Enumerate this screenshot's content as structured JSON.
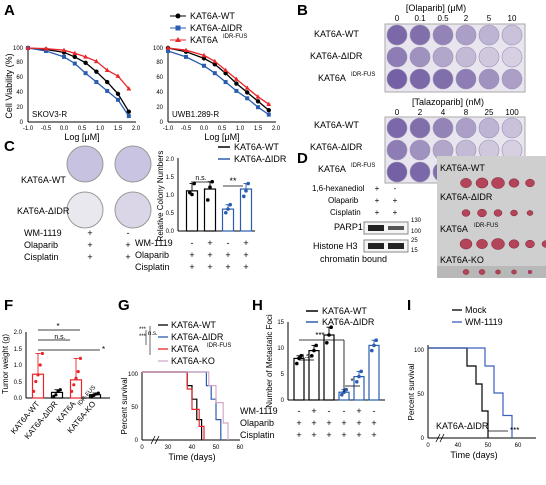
{
  "panels": {
    "A": "A",
    "B": "B",
    "C": "C",
    "D": "D",
    "E": "E",
    "F": "F",
    "G": "G",
    "H": "H",
    "I": "I"
  },
  "colors": {
    "wt": "#000000",
    "didr": "#2a5db0",
    "fus": "#e8262b",
    "ko": "#d4a9c7",
    "mock": "#000000",
    "wm": "#3b5fc0"
  },
  "panelA": {
    "legend": [
      "KAT6A-WT",
      "KAT6A-ΔIDR",
      "KAT6A",
      "IDR-FUS"
    ],
    "ylabel": "Cell Viability (%)",
    "xlabel": "Log [μM]",
    "yticks": [
      "0",
      "20",
      "40",
      "60",
      "80",
      "100"
    ],
    "xticks": [
      "-1.0",
      "-0.5",
      "0.0",
      "0.5",
      "1.0",
      "1.5",
      "2.0"
    ],
    "left_label": "SKOV3-R",
    "right_label": "UWB1.289-R"
  },
  "chart_data": [
    {
      "type": "scatter",
      "panel": "A-left",
      "title": "SKOV3-R",
      "xlabel": "Log [μM]",
      "ylabel": "Cell Viability (%)",
      "xlim": [
        -1.0,
        2.0
      ],
      "ylim": [
        0,
        100
      ],
      "series": [
        {
          "name": "KAT6A-WT",
          "x": [
            -1.0,
            -0.5,
            0.0,
            0.3,
            0.6,
            0.9,
            1.2,
            1.5,
            1.8
          ],
          "values": [
            100,
            98,
            94,
            88,
            80,
            68,
            54,
            38,
            14
          ]
        },
        {
          "name": "KAT6A-ΔIDR",
          "x": [
            -1.0,
            -0.5,
            0.0,
            0.3,
            0.6,
            0.9,
            1.2,
            1.5,
            1.8
          ],
          "values": [
            100,
            96,
            88,
            79,
            66,
            54,
            42,
            30,
            8
          ]
        },
        {
          "name": "KAT6A IDR-FUS",
          "x": [
            -1.0,
            -0.5,
            0.0,
            0.3,
            0.6,
            0.9,
            1.2,
            1.5,
            1.8
          ],
          "values": [
            100,
            99,
            97,
            93,
            88,
            82,
            70,
            62,
            45
          ]
        }
      ]
    },
    {
      "type": "scatter",
      "panel": "A-right",
      "title": "UWB1.289-R",
      "xlabel": "Log [μM]",
      "ylabel": "Cell Viability (%)",
      "xlim": [
        -1.0,
        2.0
      ],
      "ylim": [
        0,
        100
      ],
      "series": [
        {
          "name": "KAT6A-WT",
          "x": [
            -1.0,
            -0.5,
            0.0,
            0.3,
            0.6,
            0.9,
            1.2,
            1.5,
            1.8
          ],
          "values": [
            100,
            95,
            86,
            78,
            66,
            52,
            40,
            28,
            16
          ]
        },
        {
          "name": "KAT6A-ΔIDR",
          "x": [
            -1.0,
            -0.5,
            0.0,
            0.3,
            0.6,
            0.9,
            1.2,
            1.5,
            1.8
          ],
          "values": [
            96,
            88,
            76,
            66,
            54,
            42,
            32,
            20,
            10
          ]
        },
        {
          "name": "KAT6A IDR-FUS",
          "x": [
            -1.0,
            -0.5,
            0.0,
            0.3,
            0.6,
            0.9,
            1.2,
            1.5,
            1.8
          ],
          "values": [
            100,
            97,
            90,
            82,
            70,
            58,
            46,
            34,
            24
          ]
        }
      ]
    },
    {
      "type": "bar",
      "panel": "C",
      "ylabel": "Relative Colony Numbers",
      "ylim": [
        0,
        2.0
      ],
      "categories": [
        "1",
        "2",
        "3",
        "4"
      ],
      "values": [
        1.1,
        1.15,
        0.6,
        1.15
      ],
      "colors": [
        "wt",
        "wt",
        "didr",
        "didr"
      ],
      "points": [
        [
          1.05,
          1.0,
          1.3
        ],
        [
          0.85,
          1.2,
          1.35
        ],
        [
          0.5,
          0.6,
          0.72
        ],
        [
          0.95,
          1.1,
          1.3
        ]
      ],
      "annotations": [
        "n.s.",
        "**"
      ]
    },
    {
      "type": "bar",
      "panel": "F",
      "ylabel": "Tumor weight (g)",
      "ylim": [
        0,
        2.0
      ],
      "categories": [
        "KAT6A-WT",
        "KAT6A-ΔIDR",
        "KAT6A IDR-FUS",
        "KAT6A-KO"
      ],
      "values": [
        0.72,
        0.17,
        0.55,
        0.1
      ],
      "points": [
        [
          0.2,
          0.5,
          0.7,
          1.0,
          1.35
        ],
        [
          0.05,
          0.1,
          0.2,
          0.25
        ],
        [
          0.2,
          0.4,
          0.6,
          0.8,
          1.2
        ],
        [
          0.05,
          0.08,
          0.12,
          0.15
        ]
      ],
      "annotations": [
        "*",
        "n.s.",
        "*"
      ]
    },
    {
      "type": "line",
      "panel": "G",
      "xlabel": "Time (days)",
      "ylabel": "Percent survival",
      "ylim": [
        0,
        100
      ],
      "xticks": [
        "0",
        "30",
        "40",
        "50",
        "60"
      ],
      "series": [
        {
          "name": "KAT6A-WT",
          "x": [
            0,
            36,
            38,
            40,
            42,
            44
          ],
          "values": [
            100,
            100,
            80,
            60,
            30,
            0
          ]
        },
        {
          "name": "KAT6A-ΔIDR",
          "x": [
            0,
            42,
            46,
            48,
            50,
            52
          ],
          "values": [
            100,
            100,
            80,
            60,
            30,
            0
          ]
        },
        {
          "name": "KAT6A IDR-FUS",
          "x": [
            0,
            36,
            38,
            40,
            43,
            45
          ],
          "values": [
            100,
            100,
            75,
            45,
            20,
            0
          ]
        },
        {
          "name": "KAT6A-KO",
          "x": [
            0,
            44,
            47,
            50,
            53,
            55
          ],
          "values": [
            100,
            100,
            80,
            55,
            25,
            0
          ]
        }
      ]
    },
    {
      "type": "bar",
      "panel": "H",
      "ylabel": "Number of Metastatic Foci",
      "ylim": [
        0,
        15
      ],
      "categories": [
        "1",
        "2",
        "3",
        "4",
        "5",
        "6"
      ],
      "values": [
        8,
        9.5,
        12.5,
        1.5,
        4.5,
        10.5
      ],
      "colors": [
        "wt",
        "wt",
        "wt",
        "didr",
        "didr",
        "didr"
      ],
      "points": [
        [
          7,
          8,
          8.5
        ],
        [
          8.5,
          9.5,
          10.5
        ],
        [
          11,
          12.5,
          14
        ],
        [
          1,
          1.5,
          2
        ],
        [
          3.5,
          4.5,
          5.5
        ],
        [
          9.5,
          10.5,
          11.5
        ]
      ],
      "annotations": [
        "n.s.",
        "***",
        "*"
      ]
    },
    {
      "type": "line",
      "panel": "I",
      "xlabel": "Time (days)",
      "ylabel": "Percent survival",
      "ylim": [
        0,
        100
      ],
      "xticks": [
        "0",
        "40",
        "50",
        "60"
      ],
      "series": [
        {
          "name": "Mock",
          "x": [
            0,
            40,
            43,
            46,
            48,
            50
          ],
          "values": [
            100,
            100,
            80,
            60,
            30,
            0
          ]
        },
        {
          "name": "WM-1119",
          "x": [
            0,
            46,
            49,
            52,
            55,
            58
          ],
          "values": [
            100,
            100,
            80,
            50,
            25,
            0
          ]
        }
      ]
    }
  ],
  "panelB": {
    "olaparib_title": "[Olaparib] (μM)",
    "olaparib_doses": [
      "0",
      "0.1",
      "0.5",
      "2",
      "5",
      "10"
    ],
    "talazoparib_title": "[Talazoparib] (nM)",
    "talazoparib_doses": [
      "0",
      "2",
      "4",
      "8",
      "25",
      "100"
    ],
    "rows": [
      "KAT6A-WT",
      "KAT6A-ΔIDR",
      "KAT6A"
    ],
    "sup": "IDR-FUS"
  },
  "panelC": {
    "rows": [
      "KAT6A-WT",
      "KAT6A-ΔIDR"
    ],
    "treat_labels": [
      "WM-1119",
      "Olaparib",
      "Cisplatin"
    ],
    "treat_marks": [
      [
        "+",
        "-"
      ],
      [
        "+",
        "+"
      ],
      [
        "+",
        "+"
      ]
    ],
    "bar_legend": [
      "KAT6A-WT",
      "KAT6A-ΔIDR"
    ],
    "bar_treat": [
      [
        "-",
        "+",
        "-",
        "+"
      ],
      [
        "+",
        "+",
        "+",
        "+"
      ],
      [
        "+",
        "+",
        "+",
        "+"
      ]
    ],
    "ylabel": "Relative Colony Numbers",
    "yticks": [
      "0.0",
      "0.5",
      "1.0",
      "1.5",
      "2.0"
    ],
    "sig": [
      "n.s.",
      "**"
    ]
  },
  "panelD": {
    "treat_labels": [
      "1,6-hexanediol",
      "Olaparib",
      "Cisplatin"
    ],
    "treat_marks": [
      [
        "+",
        "-"
      ],
      [
        "+",
        "+"
      ],
      [
        "+",
        "+"
      ]
    ],
    "bands": [
      "PARP1",
      "Histone H3"
    ],
    "mw": [
      "130",
      "100",
      "25",
      "15"
    ],
    "footer": "chromatin bound"
  },
  "panelE": {
    "rows": [
      "KAT6A-WT",
      "KAT6A-ΔIDR",
      "KAT6A",
      "KAT6A-KO"
    ],
    "sup": "IDR-FUS"
  },
  "panelF": {
    "ylabel": "Tumor weight (g)",
    "yticks": [
      "0.0",
      "0.5",
      "1.0",
      "1.5",
      "2.0"
    ],
    "xlabels": [
      "KAT6A-WT",
      "KAT6A-ΔIDR",
      "KAT6A",
      "KAT6A-KO"
    ],
    "sup": "IDR-FUS",
    "sig": [
      "*",
      "n.s.",
      "*"
    ]
  },
  "panelG": {
    "legend": [
      "KAT6A-WT",
      "KAT6A-ΔIDR",
      "KAT6A",
      "KAT6A-KO"
    ],
    "sup": "IDR-FUS",
    "ylabel": "Percent survival",
    "xlabel": "Time (days)",
    "yticks": [
      "0",
      "50",
      "100"
    ],
    "xticks": [
      "0",
      "30",
      "40",
      "50",
      "60"
    ],
    "sig": [
      "***",
      "***",
      "n.s."
    ]
  },
  "panelH": {
    "legend": [
      "KAT6A-WT",
      "KAT6A-ΔIDR"
    ],
    "ylabel": "Number of Metastatic Foci",
    "yticks": [
      "0",
      "5",
      "10",
      "15"
    ],
    "treat_labels": [
      "WM-1119",
      "Olaparib",
      "Cisplatin"
    ],
    "treat_marks": [
      [
        "-",
        "+",
        "-",
        "-",
        "+",
        "-"
      ],
      [
        "+",
        "+",
        "+",
        "+",
        "+",
        "+"
      ],
      [
        "+",
        "+",
        "+",
        "+",
        "+",
        "+"
      ]
    ],
    "sig": [
      "n.s.",
      "***",
      "*"
    ]
  },
  "panelI": {
    "legend": [
      "Mock",
      "WM-1119"
    ],
    "ylabel": "Percent survival",
    "xlabel": "Time (days)",
    "yticks": [
      "0",
      "50",
      "100"
    ],
    "xticks": [
      "0",
      "40",
      "50",
      "60"
    ],
    "inner_label": "KAT6A-ΔIDR",
    "sig": "***"
  }
}
